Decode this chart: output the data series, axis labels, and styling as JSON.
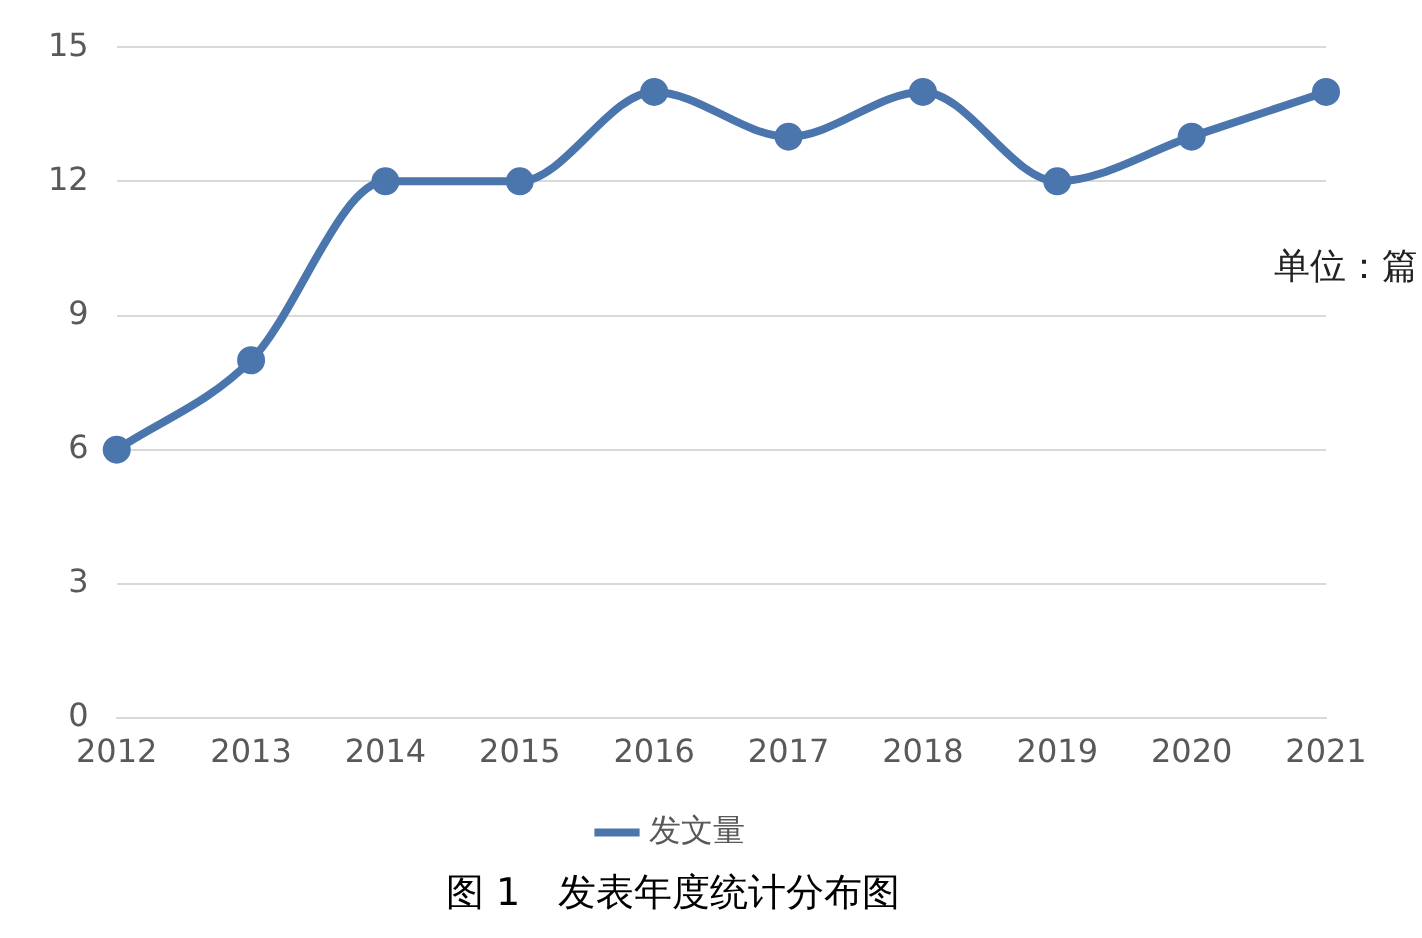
{
  "chart_data": {
    "type": "line",
    "title": "图 1　发表年度统计分布图",
    "categories": [
      "2012",
      "2013",
      "2014",
      "2015",
      "2016",
      "2017",
      "2018",
      "2019",
      "2020",
      "2021"
    ],
    "series": [
      {
        "name": "发文量",
        "color": "#4a76ad",
        "values": [
          6,
          8,
          12,
          12,
          14,
          13,
          14,
          12,
          13,
          14
        ]
      }
    ],
    "ylim": [
      0,
      15
    ],
    "yticks": [
      0,
      3,
      6,
      9,
      12,
      15
    ],
    "grid": "y",
    "legend": "bottom",
    "marker": "circle",
    "line_style": "solid",
    "annotations": [
      "单位：篇"
    ]
  }
}
